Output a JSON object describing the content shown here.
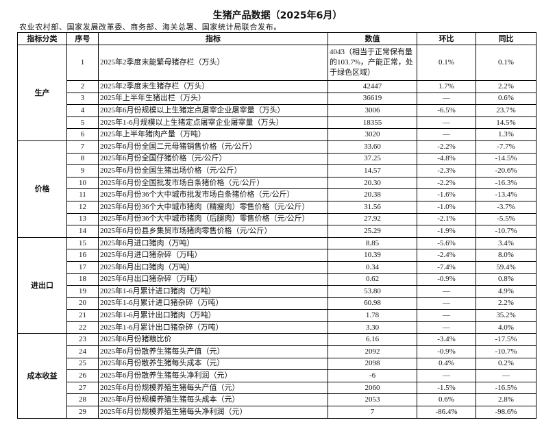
{
  "title": "生猪产品数据（2025年6月）",
  "subtitle": "农业农村部、国家发展改革委、商务部、海关总署、国家统计局联合发布。",
  "headers": [
    "指标分类",
    "序号",
    "指标",
    "数值",
    "环比",
    "同比"
  ],
  "categories": [
    {
      "label": "生产",
      "rows": [
        0,
        1,
        2,
        3,
        4,
        5
      ]
    },
    {
      "label": "价格",
      "rows": [
        6,
        7,
        8,
        9,
        10,
        11,
        12,
        13
      ]
    },
    {
      "label": "进出口",
      "rows": [
        14,
        15,
        16,
        17,
        18,
        19,
        20,
        21
      ]
    },
    {
      "label": "成本收益",
      "rows": [
        22,
        23,
        24,
        25,
        26,
        27,
        28
      ]
    }
  ],
  "rows": [
    {
      "no": "1",
      "indicator": "2025年2季度末能繁母猪存栏（万头）",
      "value": "4043（相当于正常保有量的103.7%，产能正常，处于绿色区域）",
      "mom": "0.1%",
      "yoy": "0.1%"
    },
    {
      "no": "2",
      "indicator": "2025年2季度末生猪存栏（万头）",
      "value": "42447",
      "mom": "1.7%",
      "yoy": "2.2%"
    },
    {
      "no": "3",
      "indicator": "2025年上半年生猪出栏（万头）",
      "value": "36619",
      "mom": "—",
      "yoy": "0.6%"
    },
    {
      "no": "4",
      "indicator": "2025年6月份规模以上生猪定点屠宰企业屠宰量（万头）",
      "value": "3006",
      "mom": "-6.5%",
      "yoy": "23.7%"
    },
    {
      "no": "5",
      "indicator": "2025年1-6月规模以上生猪定点屠宰企业屠宰量（万头）",
      "value": "18355",
      "mom": "—",
      "yoy": "14.5%"
    },
    {
      "no": "6",
      "indicator": "2025年上半年猪肉产量（万吨）",
      "value": "3020",
      "mom": "—",
      "yoy": "1.3%"
    },
    {
      "no": "7",
      "indicator": "2025年6月份全国二元母猪销售价格（元/公斤）",
      "value": "33.60",
      "mom": "-2.2%",
      "yoy": "-7.7%"
    },
    {
      "no": "8",
      "indicator": "2025年6月份全国仔猪价格（元/公斤）",
      "value": "37.25",
      "mom": "-4.8%",
      "yoy": "-14.5%"
    },
    {
      "no": "9",
      "indicator": "2025年6月份全国生猪出场价格（元/公斤）",
      "value": "14.57",
      "mom": "-2.3%",
      "yoy": "-20.6%"
    },
    {
      "no": "10",
      "indicator": "2025年6月份全国批发市场白条猪价格（元/公斤）",
      "value": "20.30",
      "mom": "-2.2%",
      "yoy": "-16.3%"
    },
    {
      "no": "11",
      "indicator": "2025年6月份36个大中城市批发市场白条猪价格（元/公斤）",
      "value": "20.38",
      "mom": "-1.6%",
      "yoy": "-13.4%"
    },
    {
      "no": "12",
      "indicator": "2025年6月份36个大中城市猪肉（精瘦肉）零售价格（元/公斤）",
      "value": "31.56",
      "mom": "-1.0%",
      "yoy": "-3.7%"
    },
    {
      "no": "13",
      "indicator": "2025年6月份36个大中城市猪肉（后腿肉）零售价格（元/公斤）",
      "value": "27.92",
      "mom": "-2.1%",
      "yoy": "-5.5%"
    },
    {
      "no": "14",
      "indicator": "2025年6月份县乡集贸市场猪肉零售价格（元/公斤）",
      "value": "25.29",
      "mom": "-1.9%",
      "yoy": "-10.7%"
    },
    {
      "no": "15",
      "indicator": "2025年6月进口猪肉（万吨）",
      "value": "8.85",
      "mom": "-5.6%",
      "yoy": "3.4%"
    },
    {
      "no": "16",
      "indicator": "2025年6月进口猪杂碎（万吨）",
      "value": "10.39",
      "mom": "-2.4%",
      "yoy": "8.0%"
    },
    {
      "no": "17",
      "indicator": "2025年6月出口猪肉（万吨）",
      "value": "0.34",
      "mom": "-7.4%",
      "yoy": "59.4%"
    },
    {
      "no": "18",
      "indicator": "2025年6月出口猪杂碎（万吨）",
      "value": "0.62",
      "mom": "-0.9%",
      "yoy": "0.8%"
    },
    {
      "no": "19",
      "indicator": "2025年1-6月累计进口猪肉（万吨）",
      "value": "53.80",
      "mom": "—",
      "yoy": "4.9%"
    },
    {
      "no": "20",
      "indicator": "2025年1-6月累计进口猪杂碎（万吨）",
      "value": "60.98",
      "mom": "—",
      "yoy": "2.2%"
    },
    {
      "no": "21",
      "indicator": "2025年1-6月累计出口猪肉（万吨）",
      "value": "1.78",
      "mom": "—",
      "yoy": "35.2%"
    },
    {
      "no": "22",
      "indicator": "2025年1-6月累计出口猪杂碎（万吨）",
      "value": "3.30",
      "mom": "—",
      "yoy": "4.0%"
    },
    {
      "no": "23",
      "indicator": "2025年6月份猪粮比价",
      "value": "6.16",
      "mom": "-3.4%",
      "yoy": "-17.5%"
    },
    {
      "no": "24",
      "indicator": "2025年6月份散养生猪每头产值（元）",
      "value": "2092",
      "mom": "-0.9%",
      "yoy": "-10.7%"
    },
    {
      "no": "25",
      "indicator": "2025年6月份散养生猪每头成本（元）",
      "value": "2098",
      "mom": "0.4%",
      "yoy": "0.2%"
    },
    {
      "no": "26",
      "indicator": "2025年6月份散养生猪每头净利润（元）",
      "value": "-6",
      "mom": "—",
      "yoy": "—"
    },
    {
      "no": "27",
      "indicator": "2025年6月份规模养殖生猪每头产值（元）",
      "value": "2060",
      "mom": "-1.5%",
      "yoy": "-16.5%"
    },
    {
      "no": "28",
      "indicator": "2025年6月份规模养殖生猪每头成本（元）",
      "value": "2053",
      "mom": "0.6%",
      "yoy": "2.8%"
    },
    {
      "no": "29",
      "indicator": "2025年6月份规模养殖生猪每头净利润（元）",
      "value": "7",
      "mom": "-86.4%",
      "yoy": "-98.6%"
    }
  ]
}
